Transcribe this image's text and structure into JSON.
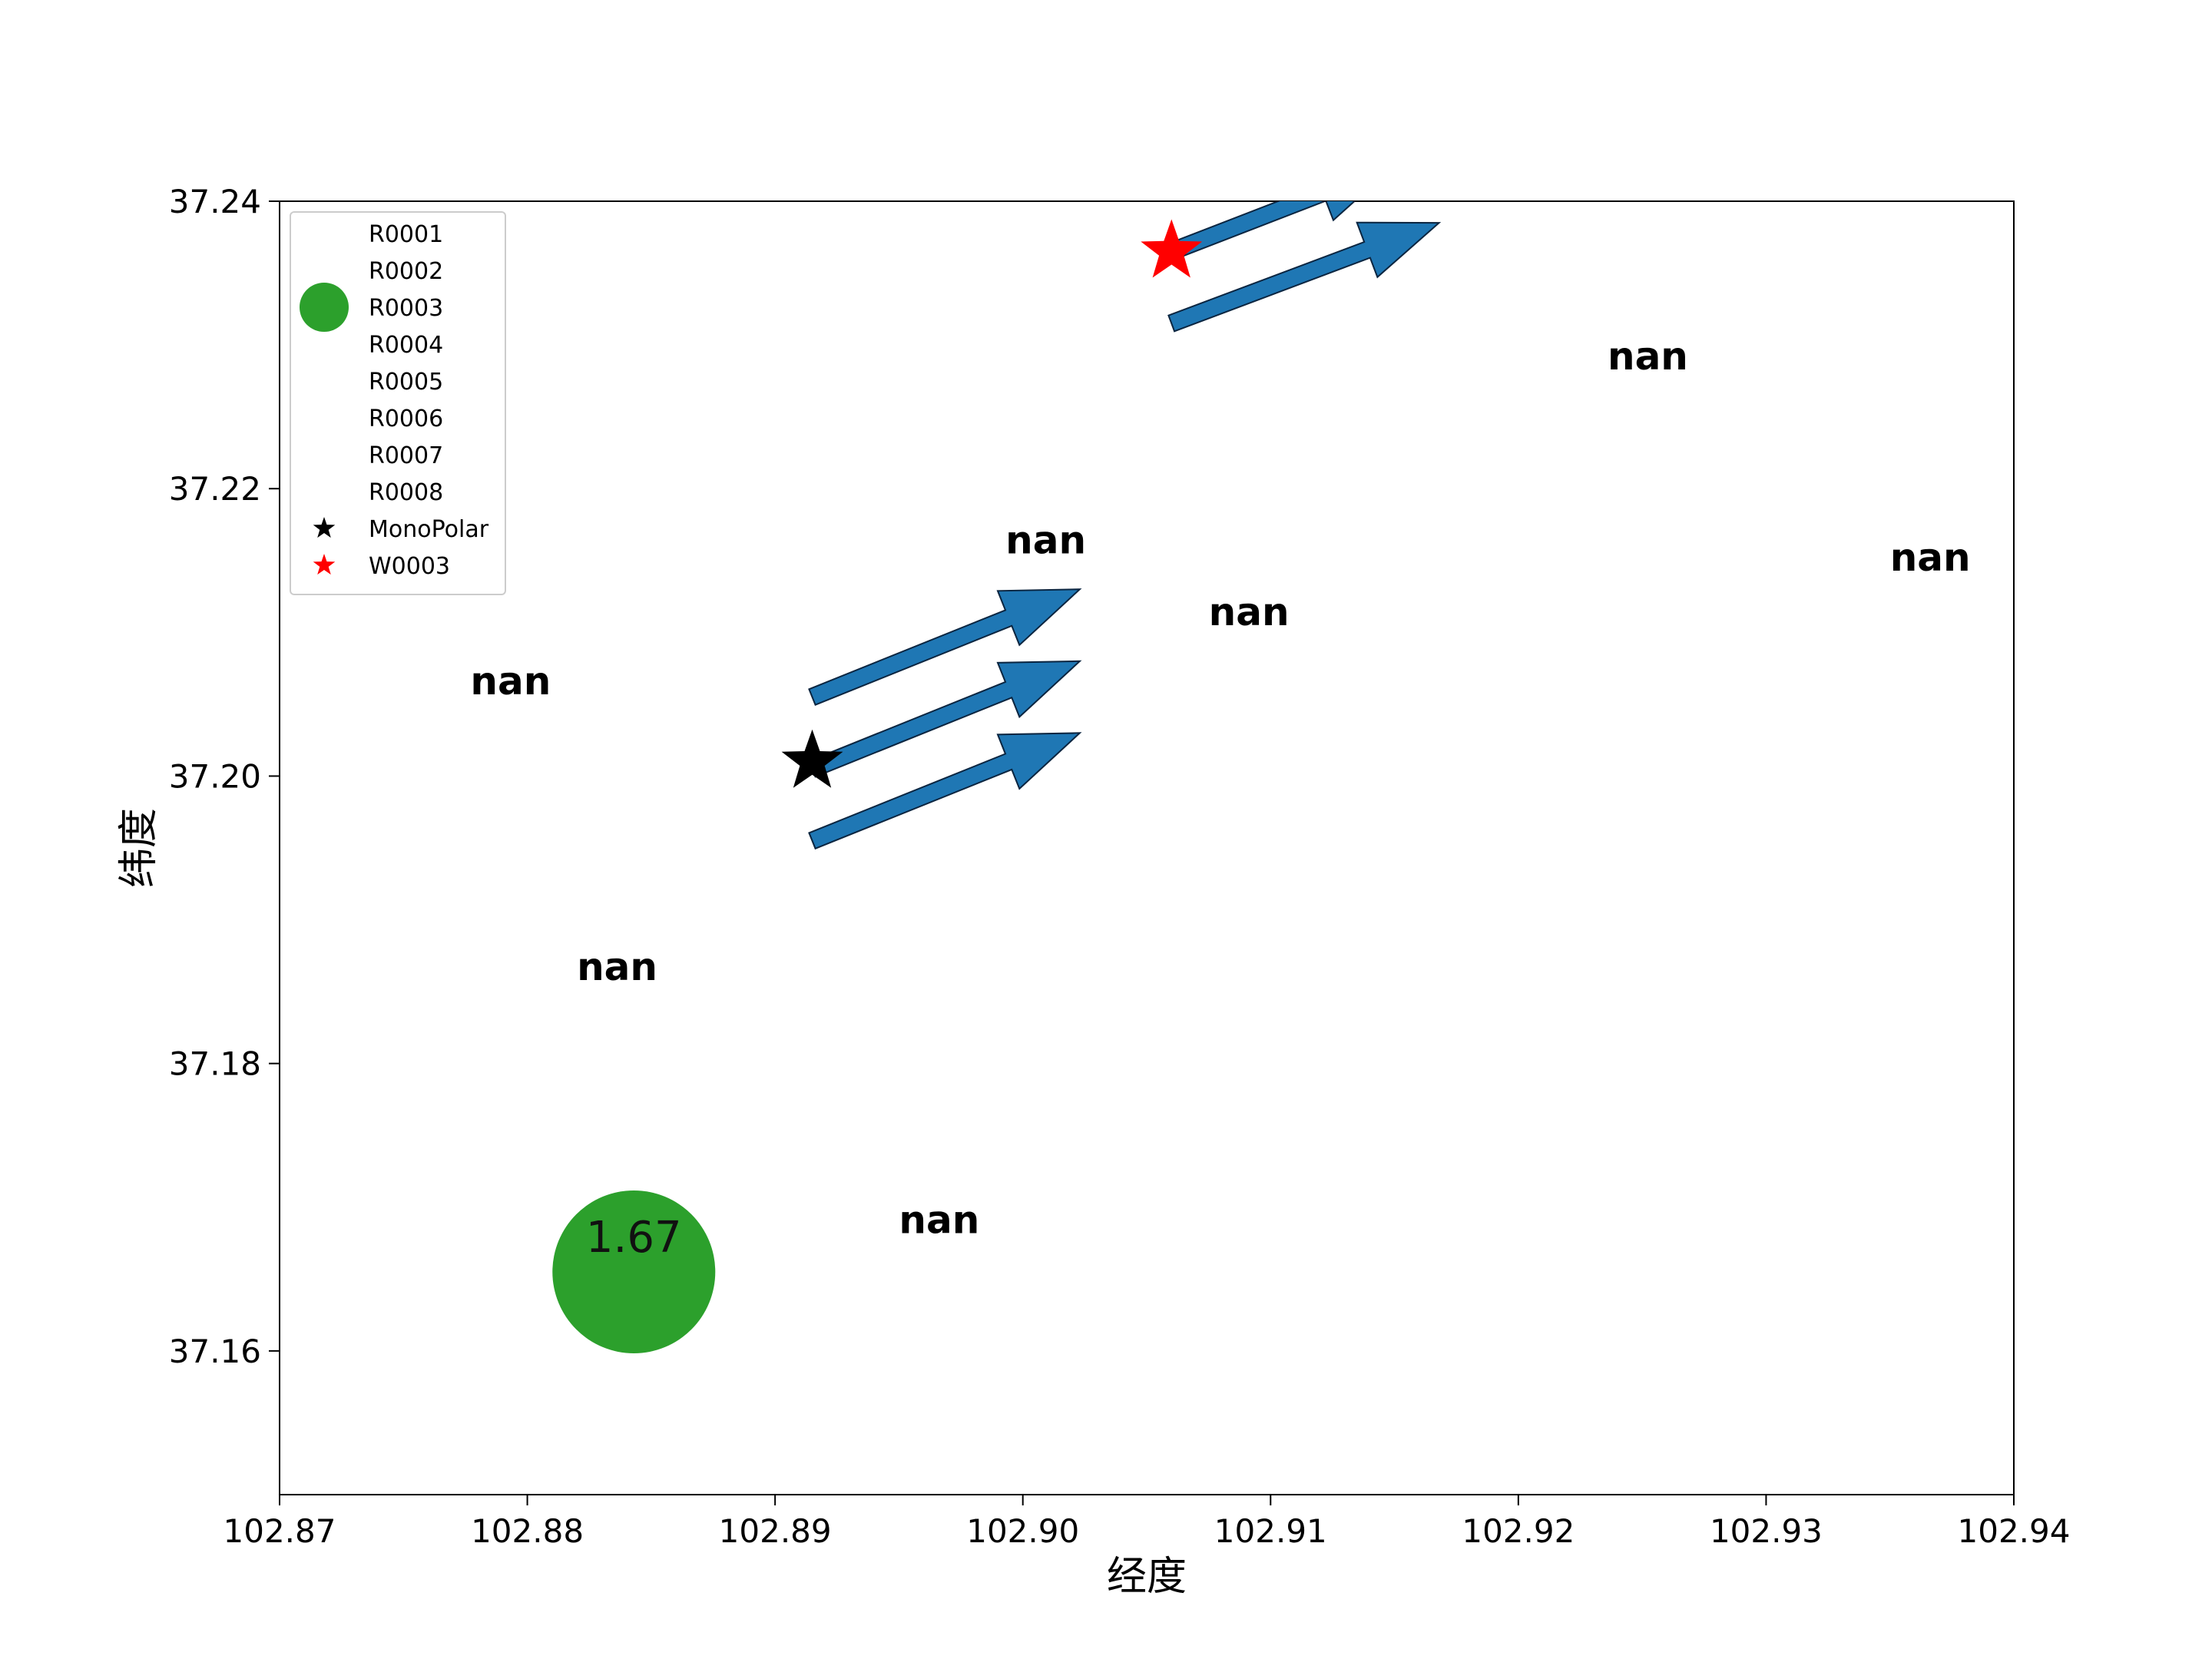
{
  "chart_data": {
    "type": "scatter",
    "title": "",
    "xlabel": "经度",
    "ylabel": "纬度",
    "xlim": [
      102.87,
      102.94
    ],
    "ylim": [
      37.15,
      37.24
    ],
    "xticks": [
      "102.87",
      "102.88",
      "102.89",
      "102.90",
      "102.91",
      "102.92",
      "102.93",
      "102.94"
    ],
    "yticks": [
      "37.16",
      "37.18",
      "37.20",
      "37.22",
      "37.24"
    ],
    "grid": false,
    "legend_position": "top-left",
    "legend": [
      {
        "name": "R0001",
        "marker": "none"
      },
      {
        "name": "R0002",
        "marker": "none"
      },
      {
        "name": "R0003",
        "marker": "circle",
        "color": "#2ca02c"
      },
      {
        "name": "R0004",
        "marker": "none"
      },
      {
        "name": "R0005",
        "marker": "none"
      },
      {
        "name": "R0006",
        "marker": "none"
      },
      {
        "name": "R0007",
        "marker": "none"
      },
      {
        "name": "R0008",
        "marker": "none"
      },
      {
        "name": "MonoPolar",
        "marker": "star",
        "color": "#000000"
      },
      {
        "name": "W0003",
        "marker": "star",
        "color": "#ff0000"
      }
    ],
    "value_points": [
      {
        "x": 102.8777,
        "y": 37.2057,
        "label": "nan"
      },
      {
        "x": 102.8993,
        "y": 37.2155,
        "label": "nan"
      },
      {
        "x": 102.9075,
        "y": 37.2105,
        "label": "nan"
      },
      {
        "x": 102.882,
        "y": 37.1858,
        "label": "nan"
      },
      {
        "x": 102.895,
        "y": 37.1682,
        "label": "nan"
      },
      {
        "x": 102.9236,
        "y": 37.2283,
        "label": "nan"
      },
      {
        "x": 102.935,
        "y": 37.2143,
        "label": "nan"
      },
      {
        "x": 102.8843,
        "y": 37.1655,
        "label": "1.67",
        "color": "#2ca02c",
        "size": "large"
      }
    ],
    "stars": [
      {
        "name": "MonoPolar",
        "x": 102.8915,
        "y": 37.201,
        "color": "#000000"
      },
      {
        "name": "W0003",
        "x": 102.906,
        "y": 37.2365,
        "color": "#ff0000"
      }
    ],
    "arrows": [
      {
        "x1": 102.8915,
        "y1": 37.2055,
        "x2": 102.9023,
        "y2": 37.213
      },
      {
        "x1": 102.8915,
        "y1": 37.2005,
        "x2": 102.9023,
        "y2": 37.208
      },
      {
        "x1": 102.8915,
        "y1": 37.1955,
        "x2": 102.9023,
        "y2": 37.203
      },
      {
        "x1": 102.906,
        "y1": 37.2365,
        "x2": 102.915,
        "y2": 37.2425
      },
      {
        "x1": 102.906,
        "y1": 37.2315,
        "x2": 102.9168,
        "y2": 37.2385
      }
    ],
    "arrow_color": "#1f77b4"
  }
}
